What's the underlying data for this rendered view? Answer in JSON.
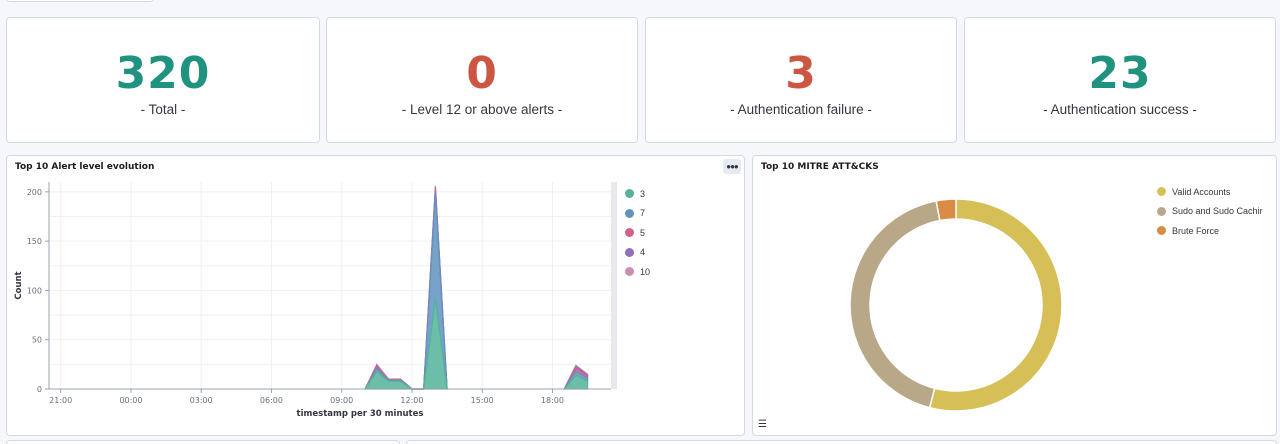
{
  "metrics": [
    {
      "value": "320",
      "label": "- Total -",
      "color": "#209280"
    },
    {
      "value": "0",
      "label": "- Level 12 or above alerts -",
      "color": "#cc5642"
    },
    {
      "value": "3",
      "label": "- Authentication failure -",
      "color": "#cc5642"
    },
    {
      "value": "23",
      "label": "- Authentication success -",
      "color": "#209280"
    }
  ],
  "alert_panel": {
    "title": "Top 10 Alert level evolution",
    "menu_icon": "ellipsis-icon",
    "legend": [
      {
        "label": "3",
        "color": "#54b399"
      },
      {
        "label": "7",
        "color": "#6092c0"
      },
      {
        "label": "5",
        "color": "#d36086"
      },
      {
        "label": "4",
        "color": "#9170b8"
      },
      {
        "label": "10",
        "color": "#ca8eae"
      }
    ]
  },
  "mitre_panel": {
    "title": "Top 10 MITRE ATT&CKS",
    "list_icon": "list-icon",
    "legend": [
      {
        "label": "Valid Accounts",
        "color": "#d6bf57"
      },
      {
        "label": "Sudo and Sudo Cachir",
        "color": "#b9a888"
      },
      {
        "label": "Brute Force",
        "color": "#da8b45"
      }
    ]
  },
  "chart_data": [
    {
      "type": "area",
      "title": "Top 10 Alert level evolution",
      "xlabel": "timestamp per 30 minutes",
      "ylabel": "Count",
      "x_ticks": [
        "21:00",
        "00:00",
        "03:00",
        "06:00",
        "09:00",
        "12:00",
        "15:00",
        "18:00"
      ],
      "y_ticks": [
        0,
        50,
        100,
        150,
        200
      ],
      "ylim": [
        0,
        210
      ],
      "grid": true,
      "legend_position": "right",
      "series": [
        {
          "name": "3",
          "points": [
            [
              10.0,
              0
            ],
            [
              10.5,
              18
            ],
            [
              11.0,
              8
            ],
            [
              11.5,
              8
            ],
            [
              12.0,
              0
            ],
            [
              12.5,
              0
            ],
            [
              13.0,
              92
            ],
            [
              13.5,
              0
            ],
            [
              18.5,
              0
            ],
            [
              19.0,
              14
            ],
            [
              19.5,
              8
            ]
          ]
        },
        {
          "name": "7",
          "points": [
            [
              10.0,
              0
            ],
            [
              10.5,
              3
            ],
            [
              11.0,
              1
            ],
            [
              11.5,
              1
            ],
            [
              12.0,
              0
            ],
            [
              12.5,
              0
            ],
            [
              13.0,
              108
            ],
            [
              13.5,
              0
            ],
            [
              18.5,
              0
            ],
            [
              19.0,
              4
            ],
            [
              19.5,
              3
            ]
          ]
        },
        {
          "name": "5",
          "points": [
            [
              10.0,
              0
            ],
            [
              10.5,
              2
            ],
            [
              11.0,
              1
            ],
            [
              11.5,
              1
            ],
            [
              12.0,
              0
            ],
            [
              12.5,
              0
            ],
            [
              13.0,
              3
            ],
            [
              13.5,
              0
            ],
            [
              18.5,
              0
            ],
            [
              19.0,
              3
            ],
            [
              19.5,
              2
            ]
          ]
        },
        {
          "name": "4",
          "points": [
            [
              10.0,
              0
            ],
            [
              10.5,
              1
            ],
            [
              11.0,
              0
            ],
            [
              11.5,
              0
            ],
            [
              12.0,
              0
            ],
            [
              12.5,
              0
            ],
            [
              13.0,
              2
            ],
            [
              13.5,
              0
            ],
            [
              18.5,
              0
            ],
            [
              19.0,
              2
            ],
            [
              19.5,
              1
            ]
          ]
        },
        {
          "name": "10",
          "points": [
            [
              10.0,
              0
            ],
            [
              10.5,
              1
            ],
            [
              11.0,
              0
            ],
            [
              11.5,
              0
            ],
            [
              12.0,
              0
            ],
            [
              12.5,
              0
            ],
            [
              13.0,
              1
            ],
            [
              13.5,
              0
            ],
            [
              18.5,
              0
            ],
            [
              19.0,
              1
            ],
            [
              19.5,
              1
            ]
          ]
        }
      ]
    },
    {
      "type": "pie",
      "title": "Top 10 MITRE ATT&CKS",
      "donut": true,
      "categories": [
        "Valid Accounts",
        "Sudo and Sudo Cachir",
        "Brute Force"
      ],
      "values": [
        54,
        43,
        3
      ],
      "legend_position": "top-right"
    }
  ]
}
